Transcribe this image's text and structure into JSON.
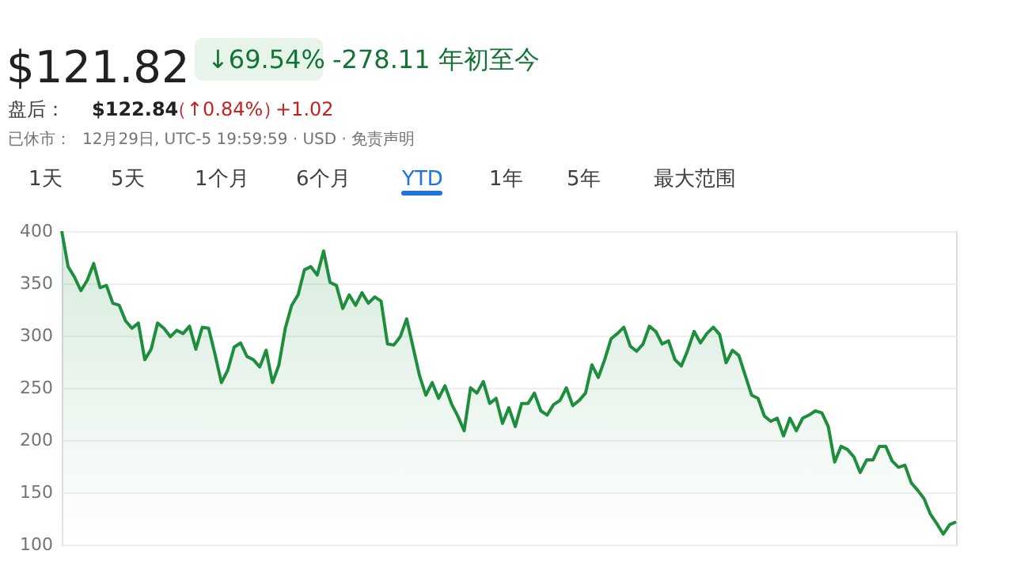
{
  "chart_data": {
    "type": "area",
    "title": "$121.82",
    "annotations": [
      "↓69.54%",
      "-278.11 年初至今",
      "盘后：",
      "$122.84",
      "（↑0.84%）",
      "+1.02",
      "已休市：",
      "12月29日, UTC-5 19:59:59 · USD · 免责声明",
      "1天",
      "5天",
      "1个月",
      "6个月",
      "YTD",
      "1年",
      "5年",
      "最大范围"
    ],
    "categories": [
      null,
      null,
      null,
      null,
      null,
      null,
      null,
      null,
      null,
      null,
      null,
      null,
      null,
      null,
      null,
      null,
      null,
      null,
      null,
      null,
      null,
      null,
      null,
      null,
      null,
      null,
      null,
      null,
      null,
      null,
      null,
      null,
      null,
      null,
      null,
      null,
      null,
      null,
      null,
      null,
      null,
      null,
      null,
      null,
      null,
      null,
      null,
      null,
      null,
      null,
      null,
      null,
      null,
      null,
      null,
      null,
      null,
      null,
      null,
      null,
      null,
      null,
      null,
      null,
      null,
      null,
      null,
      null,
      null,
      null,
      null,
      null,
      null,
      null,
      null,
      null,
      null,
      null,
      null,
      null,
      null,
      null,
      null,
      null,
      null,
      null,
      null,
      null,
      null,
      null,
      null,
      null,
      null,
      null,
      null,
      null,
      null,
      null,
      null,
      null,
      null,
      null,
      null,
      null,
      null,
      null,
      null,
      null,
      null,
      null,
      null,
      null,
      null,
      null,
      null,
      null,
      null,
      null,
      null,
      null,
      null,
      null,
      null,
      null,
      null,
      null,
      null,
      null,
      null,
      null,
      null,
      null,
      null,
      null,
      null,
      null,
      null,
      null,
      null,
      null,
      null
    ],
    "series": [
      {
        "color": "#1e8e3e",
        "values": [
          400,
          366,
          356,
          343,
          353,
          369,
          346,
          348,
          331,
          329,
          314,
          307,
          312,
          277,
          287,
          312,
          307,
          299,
          305,
          302,
          309,
          287,
          308,
          307,
          282,
          255,
          267,
          289,
          293,
          280,
          277,
          270,
          286,
          255,
          272,
          307,
          329,
          339,
          363,
          366,
          358,
          381,
          351,
          348,
          326,
          339,
          329,
          341,
          331,
          337,
          333,
          292,
          291,
          299,
          316,
          289,
          262,
          243,
          255,
          240,
          252,
          235,
          223,
          209,
          250,
          245,
          256,
          235,
          240,
          216,
          231,
          213,
          235,
          235,
          245,
          228,
          224,
          234,
          238,
          250,
          233,
          238,
          245,
          272,
          260,
          277,
          297,
          302,
          308,
          290,
          285,
          292,
          309,
          304,
          292,
          295,
          277,
          271,
          286,
          304,
          293,
          302,
          308,
          301,
          274,
          286,
          281,
          262,
          243,
          240,
          223,
          218,
          221,
          204,
          221,
          209,
          221,
          224,
          228,
          226,
          213,
          179,
          194,
          191,
          184,
          169,
          181,
          181,
          194,
          194,
          180,
          174,
          176,
          159,
          152,
          144,
          129,
          120,
          110,
          119,
          121.82
        ]
      }
    ],
    "ylim": [
      100,
      400
    ],
    "yticks": [
      100,
      150,
      200,
      250,
      300,
      350,
      400
    ],
    "grid": "y"
  }
}
